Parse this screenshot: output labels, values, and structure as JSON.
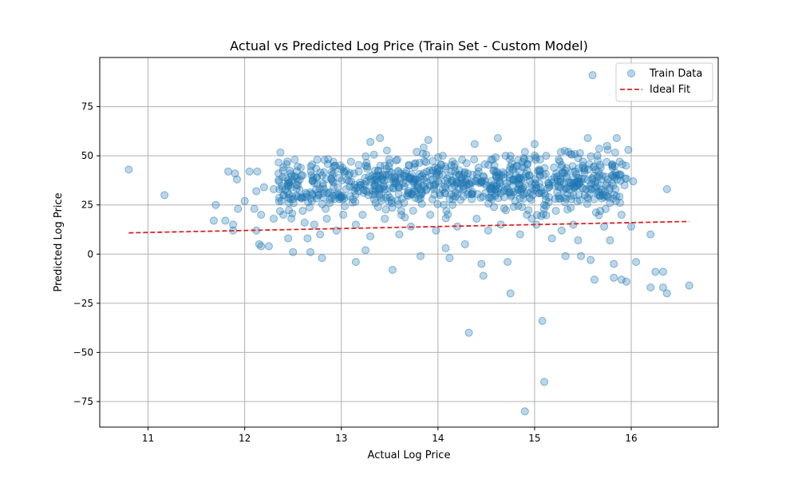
{
  "chart_data": {
    "type": "scatter",
    "title": "Actual vs Predicted Log Price (Train Set - Custom Model)",
    "xlabel": "Actual Log Price",
    "ylabel": "Predicted Log Price",
    "xlim": [
      10.5,
      16.9
    ],
    "ylim": [
      -88,
      100
    ],
    "xticks": [
      11,
      12,
      13,
      14,
      15,
      16
    ],
    "yticks": [
      -75,
      -50,
      -25,
      0,
      25,
      50,
      75
    ],
    "ytick_labels": [
      "−75",
      "−50",
      "−25",
      "0",
      "25",
      "50",
      "75"
    ],
    "grid": true,
    "legend_position": "top-right",
    "colors": {
      "points": "#1f77b4",
      "ideal_fit": "#d62728"
    },
    "series": [
      {
        "name": "Train Data",
        "kind": "scatter",
        "cluster_center": [
          13.6,
          36
        ],
        "points": [
          [
            10.8,
            43
          ],
          [
            11.17,
            30
          ],
          [
            11.68,
            17
          ],
          [
            11.7,
            25
          ],
          [
            11.8,
            17
          ],
          [
            11.83,
            42
          ],
          [
            11.88,
            12
          ],
          [
            11.88,
            15
          ],
          [
            11.9,
            41
          ],
          [
            11.92,
            38
          ],
          [
            11.93,
            23
          ],
          [
            12.0,
            27
          ],
          [
            12.05,
            42
          ],
          [
            12.1,
            23
          ],
          [
            12.12,
            12
          ],
          [
            12.12,
            32
          ],
          [
            12.13,
            42
          ],
          [
            12.15,
            5
          ],
          [
            12.17,
            20
          ],
          [
            12.17,
            4
          ],
          [
            12.2,
            34
          ],
          [
            12.25,
            4
          ],
          [
            12.3,
            18
          ],
          [
            12.3,
            33
          ],
          [
            12.35,
            41
          ],
          [
            12.4,
            20
          ],
          [
            12.4,
            30
          ],
          [
            12.45,
            36
          ],
          [
            12.45,
            8
          ],
          [
            12.5,
            1
          ],
          [
            12.5,
            28
          ],
          [
            12.55,
            37
          ],
          [
            12.6,
            40
          ],
          [
            12.6,
            22
          ],
          [
            12.62,
            16
          ],
          [
            12.65,
            8
          ],
          [
            12.68,
            1
          ],
          [
            12.7,
            30
          ],
          [
            12.75,
            48
          ],
          [
            12.72,
            15
          ],
          [
            12.78,
            10
          ],
          [
            12.8,
            40
          ],
          [
            12.8,
            -2
          ],
          [
            12.82,
            33
          ],
          [
            12.85,
            18
          ],
          [
            12.88,
            26
          ],
          [
            12.9,
            38
          ],
          [
            12.93,
            45
          ],
          [
            12.95,
            12
          ],
          [
            12.98,
            28
          ],
          [
            13.0,
            43
          ],
          [
            13.02,
            20
          ],
          [
            13.05,
            33
          ],
          [
            13.08,
            37
          ],
          [
            13.1,
            47
          ],
          [
            13.12,
            28
          ],
          [
            13.15,
            -4
          ],
          [
            13.15,
            15
          ],
          [
            13.18,
            42
          ],
          [
            13.2,
            35
          ],
          [
            13.22,
            20
          ],
          [
            13.25,
            45
          ],
          [
            13.25,
            2
          ],
          [
            13.28,
            30
          ],
          [
            13.3,
            57
          ],
          [
            13.3,
            9
          ],
          [
            13.32,
            40
          ],
          [
            13.35,
            33
          ],
          [
            13.38,
            24
          ],
          [
            13.4,
            59
          ],
          [
            13.42,
            38
          ],
          [
            13.45,
            45
          ],
          [
            13.45,
            18
          ],
          [
            13.48,
            30
          ],
          [
            13.5,
            42
          ],
          [
            13.52,
            26
          ],
          [
            13.53,
            -8
          ],
          [
            13.55,
            36
          ],
          [
            13.58,
            48
          ],
          [
            13.6,
            10
          ],
          [
            13.6,
            34
          ],
          [
            13.62,
            22
          ],
          [
            13.65,
            40
          ],
          [
            13.68,
            30
          ],
          [
            13.7,
            45
          ],
          [
            13.72,
            14
          ],
          [
            13.75,
            37
          ],
          [
            13.78,
            52
          ],
          [
            13.8,
            28
          ],
          [
            13.82,
            -1
          ],
          [
            13.85,
            41
          ],
          [
            13.88,
            33
          ],
          [
            13.9,
            58
          ],
          [
            13.92,
            20
          ],
          [
            13.95,
            38
          ],
          [
            13.98,
            12
          ],
          [
            14.0,
            44
          ],
          [
            14.02,
            30
          ],
          [
            14.05,
            50
          ],
          [
            14.08,
            3
          ],
          [
            14.1,
            36
          ],
          [
            14.12,
            -2
          ],
          [
            14.15,
            25
          ],
          [
            14.18,
            42
          ],
          [
            14.2,
            14
          ],
          [
            14.22,
            33
          ],
          [
            14.25,
            48
          ],
          [
            14.28,
            5
          ],
          [
            14.3,
            38
          ],
          [
            14.32,
            -40
          ],
          [
            14.35,
            28
          ],
          [
            14.38,
            56
          ],
          [
            14.4,
            18
          ],
          [
            14.42,
            44
          ],
          [
            14.45,
            -5
          ],
          [
            14.47,
            -11
          ],
          [
            14.5,
            35
          ],
          [
            14.52,
            12
          ],
          [
            14.55,
            48
          ],
          [
            14.58,
            24
          ],
          [
            14.6,
            40
          ],
          [
            14.62,
            59
          ],
          [
            14.65,
            15
          ],
          [
            14.68,
            32
          ],
          [
            14.7,
            50
          ],
          [
            14.72,
            -4
          ],
          [
            14.75,
            -20
          ],
          [
            14.78,
            38
          ],
          [
            14.8,
            27
          ],
          [
            14.82,
            45
          ],
          [
            14.85,
            10
          ],
          [
            14.88,
            34
          ],
          [
            14.9,
            -80
          ],
          [
            14.9,
            52
          ],
          [
            14.92,
            20
          ],
          [
            14.95,
            40
          ],
          [
            14.98,
            30
          ],
          [
            15.0,
            56
          ],
          [
            15.02,
            15
          ],
          [
            15.05,
            42
          ],
          [
            15.08,
            -34
          ],
          [
            15.1,
            -65
          ],
          [
            15.1,
            25
          ],
          [
            15.12,
            50
          ],
          [
            15.15,
            35
          ],
          [
            15.18,
            8
          ],
          [
            15.2,
            44
          ],
          [
            15.22,
            22
          ],
          [
            15.25,
            48
          ],
          [
            15.28,
            12
          ],
          [
            15.3,
            36
          ],
          [
            15.32,
            -1
          ],
          [
            15.35,
            52
          ],
          [
            15.38,
            28
          ],
          [
            15.4,
            15
          ],
          [
            15.42,
            42
          ],
          [
            15.45,
            7
          ],
          [
            15.48,
            -1
          ],
          [
            15.5,
            45
          ],
          [
            15.52,
            30
          ],
          [
            15.55,
            59
          ],
          [
            15.58,
            -3
          ],
          [
            15.6,
            91
          ],
          [
            15.6,
            38
          ],
          [
            15.62,
            -13
          ],
          [
            15.65,
            50
          ],
          [
            15.68,
            22
          ],
          [
            15.7,
            33
          ],
          [
            15.72,
            14
          ],
          [
            15.75,
            55
          ],
          [
            15.78,
            7
          ],
          [
            15.8,
            40
          ],
          [
            15.82,
            -5
          ],
          [
            15.82,
            -12
          ],
          [
            15.85,
            59
          ],
          [
            15.88,
            47
          ],
          [
            15.9,
            -13
          ],
          [
            15.9,
            20
          ],
          [
            15.93,
            35
          ],
          [
            15.95,
            -14
          ],
          [
            15.97,
            53
          ],
          [
            16.0,
            14
          ],
          [
            16.02,
            37
          ],
          [
            16.05,
            -4
          ],
          [
            16.2,
            10
          ],
          [
            16.2,
            -17
          ],
          [
            16.25,
            -9
          ],
          [
            16.33,
            -9
          ],
          [
            16.33,
            -17
          ],
          [
            16.37,
            -20
          ],
          [
            16.37,
            33
          ],
          [
            16.6,
            -16
          ]
        ]
      },
      {
        "name": "Ideal Fit",
        "kind": "line",
        "style": "dashed",
        "points": [
          [
            10.8,
            10.8
          ],
          [
            16.6,
            16.6
          ]
        ]
      }
    ]
  }
}
